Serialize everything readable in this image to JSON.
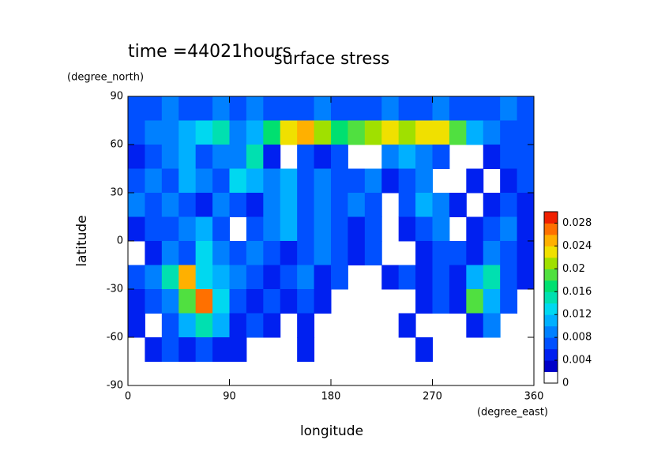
{
  "chart_data": {
    "type": "contour",
    "title": "surface stress",
    "annotation": "time =44021hours",
    "x_label": "longitude",
    "y_label": "latitude",
    "x_units": "(degree_east)",
    "y_units": "(degree_north)",
    "xlim": [
      0,
      360
    ],
    "ylim": [
      -90,
      90
    ],
    "xticks": [
      0,
      90,
      180,
      270,
      360
    ],
    "yticks": [
      -90,
      -60,
      -30,
      0,
      30,
      60,
      90
    ],
    "x": [
      7.5,
      22.5,
      37.5,
      52.5,
      67.5,
      82.5,
      97.5,
      112.5,
      127.5,
      142.5,
      157.5,
      172.5,
      187.5,
      202.5,
      217.5,
      232.5,
      247.5,
      262.5,
      277.5,
      292.5,
      307.5,
      322.5,
      337.5,
      352.5
    ],
    "y": [
      82.5,
      67.5,
      52.5,
      37.5,
      22.5,
      7.5,
      -7.5,
      -22.5,
      -37.5,
      -52.5,
      -67.5,
      -82.5
    ],
    "values": [
      [
        0.006,
        0.006,
        0.008,
        0.006,
        0.006,
        0.008,
        0.006,
        0.008,
        0.006,
        0.006,
        0.006,
        0.008,
        0.006,
        0.006,
        0.006,
        0.008,
        0.006,
        0.006,
        0.008,
        0.006,
        0.006,
        0.006,
        0.008,
        0.006
      ],
      [
        0.006,
        0.008,
        0.008,
        0.01,
        0.012,
        0.014,
        0.008,
        0.01,
        0.016,
        0.022,
        0.024,
        0.02,
        0.016,
        0.018,
        0.02,
        0.022,
        0.02,
        0.022,
        0.022,
        0.018,
        0.01,
        0.008,
        0.006,
        0.006
      ],
      [
        0.004,
        0.006,
        0.008,
        0.01,
        0.006,
        0.008,
        0.008,
        0.014,
        0.004,
        null,
        0.006,
        0.004,
        0.006,
        null,
        null,
        0.008,
        0.01,
        0.008,
        0.006,
        null,
        null,
        0.004,
        0.006,
        0.006
      ],
      [
        0.006,
        0.008,
        0.006,
        0.01,
        0.008,
        0.006,
        0.012,
        0.01,
        0.008,
        0.01,
        0.006,
        0.008,
        0.006,
        0.006,
        0.008,
        0.004,
        0.006,
        0.008,
        null,
        null,
        0.004,
        null,
        0.004,
        0.006
      ],
      [
        0.008,
        0.006,
        0.008,
        0.006,
        0.004,
        0.008,
        0.006,
        0.004,
        0.008,
        0.01,
        0.006,
        0.008,
        0.006,
        0.008,
        0.006,
        null,
        0.006,
        0.01,
        0.008,
        0.004,
        null,
        0.004,
        0.006,
        0.004
      ],
      [
        0.004,
        0.006,
        0.006,
        0.008,
        0.01,
        0.006,
        null,
        0.006,
        0.008,
        0.01,
        0.006,
        0.008,
        0.006,
        0.004,
        0.006,
        null,
        0.004,
        0.006,
        0.008,
        null,
        0.004,
        0.006,
        0.008,
        0.004
      ],
      [
        null,
        0.004,
        0.008,
        0.006,
        0.012,
        0.008,
        0.006,
        0.008,
        0.006,
        0.004,
        0.006,
        0.008,
        0.006,
        0.004,
        0.006,
        null,
        null,
        0.004,
        0.006,
        0.006,
        0.004,
        0.008,
        0.006,
        0.004
      ],
      [
        0.006,
        0.008,
        0.014,
        0.024,
        0.012,
        0.01,
        0.008,
        0.006,
        0.004,
        0.006,
        0.008,
        0.004,
        0.006,
        null,
        null,
        0.004,
        0.006,
        0.004,
        0.006,
        0.004,
        0.01,
        0.014,
        0.006,
        0.004
      ],
      [
        0.004,
        0.006,
        0.008,
        0.018,
        0.026,
        0.012,
        0.006,
        0.004,
        0.006,
        0.004,
        0.006,
        0.004,
        null,
        null,
        null,
        null,
        null,
        0.004,
        0.006,
        0.004,
        0.018,
        0.01,
        0.006,
        null
      ],
      [
        0.004,
        null,
        0.006,
        0.01,
        0.014,
        0.01,
        0.004,
        0.006,
        0.004,
        null,
        0.004,
        null,
        null,
        null,
        null,
        null,
        0.004,
        null,
        null,
        null,
        0.004,
        0.008,
        null,
        null
      ],
      [
        null,
        0.004,
        0.006,
        0.004,
        0.006,
        0.004,
        0.004,
        null,
        null,
        null,
        0.004,
        null,
        null,
        null,
        null,
        null,
        null,
        0.004,
        null,
        null,
        null,
        null,
        null,
        null
      ],
      [
        null,
        null,
        null,
        null,
        null,
        null,
        null,
        null,
        null,
        null,
        null,
        null,
        null,
        null,
        null,
        null,
        null,
        null,
        null,
        null,
        null,
        null,
        null,
        null
      ]
    ],
    "colorbar": {
      "lim": [
        0,
        0.03
      ],
      "ticks": [
        0,
        0.004,
        0.008,
        0.012,
        0.016,
        0.02,
        0.024,
        0.028
      ],
      "levels": [
        0,
        0.002,
        0.004,
        0.006,
        0.008,
        0.01,
        0.012,
        0.014,
        0.016,
        0.018,
        0.02,
        0.022,
        0.024,
        0.026,
        0.028,
        0.03
      ],
      "colors": [
        "#ffffff",
        "#0000c8",
        "#0020f0",
        "#0050ff",
        "#0080ff",
        "#00b0ff",
        "#00d8f0",
        "#00e0b0",
        "#00e070",
        "#50e040",
        "#a0e000",
        "#f0e000",
        "#ffb000",
        "#ff7000",
        "#f02000"
      ]
    }
  }
}
